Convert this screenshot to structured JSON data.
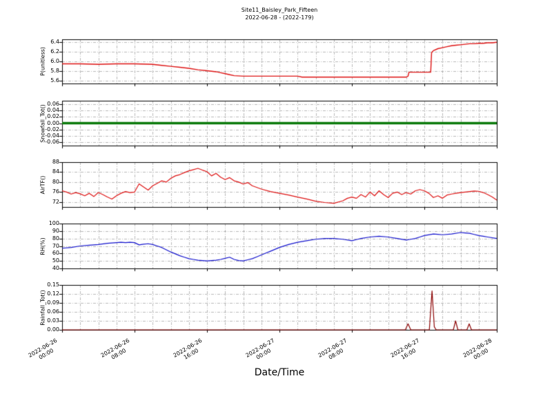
{
  "figure": {
    "title": "Site11_Baisley_Park_Fifteen",
    "subtitle": "2022-06-28 - (2022-179)",
    "xlabel": "Date/Time",
    "background": "#ffffff",
    "grid_color": "#999999",
    "frame_color": "#000000"
  },
  "x_axis": {
    "range_hours": [
      0,
      48
    ],
    "start_datetime": "2022-06-26 00:00",
    "tick_every_hours": 8,
    "grid_every_hours": 2,
    "tick_labels": [
      "2022-06-26\n00:00",
      "2022-06-26\n08:00",
      "2022-06-26\n16:00",
      "2022-06-27\n00:00",
      "2022-06-27\n08:00",
      "2022-06-27\n16:00",
      "2022-06-28\n00:00"
    ]
  },
  "chart_data": [
    {
      "type": "line",
      "ylabel": "P(unitless)",
      "color": "#dd1111",
      "linewidth": 1.4,
      "ylim": [
        5.55,
        6.45
      ],
      "ytick_values": [
        5.6,
        5.8,
        6.0,
        6.2,
        6.4
      ],
      "ytick_labels": [
        "5.6",
        "5.8",
        "6.0",
        "6.2",
        "6.4"
      ],
      "points": [
        [
          0,
          5.95
        ],
        [
          2,
          5.95
        ],
        [
          4,
          5.94
        ],
        [
          6,
          5.95
        ],
        [
          8,
          5.95
        ],
        [
          10,
          5.94
        ],
        [
          11,
          5.92
        ],
        [
          12,
          5.9
        ],
        [
          13,
          5.88
        ],
        [
          14,
          5.86
        ],
        [
          15,
          5.83
        ],
        [
          16,
          5.81
        ],
        [
          17,
          5.79
        ],
        [
          17.5,
          5.77
        ],
        [
          18,
          5.75
        ],
        [
          18.5,
          5.73
        ],
        [
          19,
          5.71
        ],
        [
          20,
          5.7
        ],
        [
          22,
          5.7
        ],
        [
          24,
          5.7
        ],
        [
          26,
          5.7
        ],
        [
          26.5,
          5.68
        ],
        [
          28,
          5.68
        ],
        [
          30,
          5.68
        ],
        [
          32,
          5.68
        ],
        [
          34,
          5.68
        ],
        [
          36,
          5.68
        ],
        [
          38,
          5.68
        ],
        [
          38.2,
          5.7
        ],
        [
          38.3,
          5.78
        ],
        [
          40,
          5.78
        ],
        [
          40.7,
          5.78
        ],
        [
          40.8,
          6.18
        ],
        [
          41,
          6.22
        ],
        [
          41.5,
          6.26
        ],
        [
          42,
          6.28
        ],
        [
          42.5,
          6.3
        ],
        [
          43,
          6.32
        ],
        [
          43.5,
          6.33
        ],
        [
          44,
          6.34
        ],
        [
          44.5,
          6.35
        ],
        [
          45,
          6.36
        ],
        [
          45.5,
          6.36
        ],
        [
          46,
          6.37
        ],
        [
          46.5,
          6.37
        ],
        [
          47,
          6.38
        ],
        [
          47.5,
          6.38
        ],
        [
          48,
          6.39
        ]
      ]
    },
    {
      "type": "line",
      "ylabel": "Snowfall_Tot()",
      "color": "#0a7a0a",
      "linewidth": 3.5,
      "ylim": [
        -0.07,
        0.07
      ],
      "ytick_values": [
        -0.06,
        -0.04,
        -0.02,
        0.0,
        0.02,
        0.04,
        0.06
      ],
      "ytick_labels": [
        "-0.06",
        "-0.04",
        "-0.02",
        "0.00",
        "0.02",
        "0.04",
        "0.06"
      ],
      "points": [
        [
          0,
          0
        ],
        [
          48,
          0
        ]
      ]
    },
    {
      "type": "line",
      "ylabel": "AirTF()",
      "color": "#dd1111",
      "linewidth": 1.2,
      "ylim": [
        70,
        88
      ],
      "ytick_values": [
        72,
        76,
        80,
        84,
        88
      ],
      "ytick_labels": [
        "72",
        "76",
        "80",
        "84",
        "88"
      ],
      "points": [
        [
          0,
          76.5
        ],
        [
          0.5,
          76
        ],
        [
          1,
          75.2
        ],
        [
          1.5,
          75.8
        ],
        [
          2,
          75.3
        ],
        [
          2.5,
          74.5
        ],
        [
          3,
          75.5
        ],
        [
          3.5,
          74.2
        ],
        [
          4,
          75.8
        ],
        [
          4.5,
          75
        ],
        [
          5,
          74
        ],
        [
          5.5,
          73.2
        ],
        [
          6,
          74.5
        ],
        [
          6.5,
          75.5
        ],
        [
          7,
          76.2
        ],
        [
          7.5,
          75.8
        ],
        [
          8,
          76
        ],
        [
          8.5,
          79.3
        ],
        [
          9,
          78
        ],
        [
          9.5,
          76.8
        ],
        [
          10,
          78.5
        ],
        [
          10.5,
          79.5
        ],
        [
          11,
          80.5
        ],
        [
          11.5,
          80
        ],
        [
          12,
          81.5
        ],
        [
          12.5,
          82.5
        ],
        [
          13,
          83
        ],
        [
          13.5,
          83.8
        ],
        [
          14,
          84.5
        ],
        [
          14.5,
          85
        ],
        [
          15,
          85.5
        ],
        [
          15.5,
          84.8
        ],
        [
          16,
          84.2
        ],
        [
          16.5,
          82.5
        ],
        [
          17,
          83.5
        ],
        [
          17.5,
          82
        ],
        [
          18,
          81
        ],
        [
          18.5,
          81.8
        ],
        [
          19,
          80.5
        ],
        [
          19.5,
          80
        ],
        [
          20,
          79.2
        ],
        [
          20.5,
          79.8
        ],
        [
          21,
          78.5
        ],
        [
          22,
          77.2
        ],
        [
          23,
          76.2
        ],
        [
          24,
          75.5
        ],
        [
          25,
          74.8
        ],
        [
          26,
          74
        ],
        [
          27,
          73.2
        ],
        [
          28,
          72.3
        ],
        [
          29,
          71.8
        ],
        [
          30,
          71.5
        ],
        [
          31,
          72.5
        ],
        [
          31.5,
          73.5
        ],
        [
          32,
          74
        ],
        [
          32.5,
          73.5
        ],
        [
          33,
          75
        ],
        [
          33.5,
          74
        ],
        [
          34,
          76
        ],
        [
          34.5,
          74.5
        ],
        [
          35,
          76.5
        ],
        [
          35.5,
          75
        ],
        [
          36,
          73.8
        ],
        [
          36.5,
          75.5
        ],
        [
          37,
          76
        ],
        [
          37.5,
          75
        ],
        [
          38,
          75.8
        ],
        [
          38.5,
          75.2
        ],
        [
          39,
          76.5
        ],
        [
          39.5,
          77
        ],
        [
          40,
          76.5
        ],
        [
          40.5,
          75.5
        ],
        [
          41,
          73.8
        ],
        [
          41.5,
          74.5
        ],
        [
          42,
          73.5
        ],
        [
          42.5,
          74.8
        ],
        [
          43,
          75.2
        ],
        [
          43.5,
          75.5
        ],
        [
          44,
          75.8
        ],
        [
          44.5,
          76
        ],
        [
          45,
          76.2
        ],
        [
          45.5,
          76.4
        ],
        [
          46,
          76.3
        ],
        [
          46.5,
          75.8
        ],
        [
          47,
          75
        ],
        [
          47.5,
          74
        ],
        [
          48,
          72.8
        ]
      ]
    },
    {
      "type": "line",
      "ylabel": "RH(%)",
      "color": "#1111cc",
      "linewidth": 1.2,
      "ylim": [
        40,
        100
      ],
      "ytick_values": [
        40,
        50,
        60,
        70,
        80,
        90,
        100
      ],
      "ytick_labels": [
        "40",
        "50",
        "60",
        "70",
        "80",
        "90",
        "100"
      ],
      "points": [
        [
          0,
          67
        ],
        [
          1,
          68
        ],
        [
          2,
          70
        ],
        [
          3,
          71
        ],
        [
          4,
          72
        ],
        [
          5,
          73.5
        ],
        [
          6,
          74.5
        ],
        [
          6.5,
          75
        ],
        [
          7,
          74.5
        ],
        [
          7.5,
          75
        ],
        [
          8,
          74.5
        ],
        [
          8.5,
          71.5
        ],
        [
          9,
          72.5
        ],
        [
          9.5,
          73
        ],
        [
          10,
          72
        ],
        [
          10.5,
          70
        ],
        [
          11,
          68
        ],
        [
          11.5,
          65
        ],
        [
          12,
          62
        ],
        [
          12.5,
          59.5
        ],
        [
          13,
          57
        ],
        [
          13.5,
          55
        ],
        [
          14,
          53
        ],
        [
          14.5,
          52
        ],
        [
          15,
          51
        ],
        [
          15.5,
          50.5
        ],
        [
          16,
          50
        ],
        [
          16.5,
          50.5
        ],
        [
          17,
          51
        ],
        [
          17.5,
          52
        ],
        [
          18,
          53.5
        ],
        [
          18.5,
          55
        ],
        [
          19,
          52
        ],
        [
          19.5,
          50.5
        ],
        [
          20,
          50
        ],
        [
          20.5,
          51.5
        ],
        [
          21,
          53
        ],
        [
          21.5,
          55.5
        ],
        [
          22,
          58
        ],
        [
          22.5,
          60.5
        ],
        [
          23,
          63
        ],
        [
          24,
          68
        ],
        [
          25,
          72
        ],
        [
          26,
          75
        ],
        [
          27,
          77
        ],
        [
          28,
          79
        ],
        [
          29,
          80
        ],
        [
          30,
          80
        ],
        [
          31,
          79
        ],
        [
          32,
          77
        ],
        [
          32.5,
          78.5
        ],
        [
          33,
          80
        ],
        [
          34,
          82
        ],
        [
          35,
          83
        ],
        [
          36,
          82
        ],
        [
          37,
          80
        ],
        [
          38,
          78
        ],
        [
          38.5,
          79
        ],
        [
          39,
          80
        ],
        [
          39.5,
          82
        ],
        [
          40,
          84
        ],
        [
          41,
          86
        ],
        [
          41.5,
          85.5
        ],
        [
          42,
          85
        ],
        [
          43,
          86
        ],
        [
          44,
          88
        ],
        [
          44.5,
          87.5
        ],
        [
          45,
          87
        ],
        [
          45.5,
          85.5
        ],
        [
          46,
          84
        ],
        [
          46.5,
          83
        ],
        [
          47,
          82
        ],
        [
          48,
          80
        ]
      ]
    },
    {
      "type": "line",
      "ylabel": "Rainfall_Tot()",
      "color": "#8b0000",
      "linewidth": 1.2,
      "ylim": [
        0,
        0.15
      ],
      "ytick_values": [
        0.0,
        0.03,
        0.06,
        0.09,
        0.12,
        0.15
      ],
      "ytick_labels": [
        "0.00",
        "0.03",
        "0.06",
        "0.09",
        "0.12",
        "0.15"
      ],
      "points": [
        [
          0,
          0
        ],
        [
          37.9,
          0
        ],
        [
          38.2,
          0.02
        ],
        [
          38.5,
          0
        ],
        [
          40.55,
          0
        ],
        [
          40.85,
          0.13
        ],
        [
          41.1,
          0.01
        ],
        [
          41.3,
          0
        ],
        [
          43.2,
          0
        ],
        [
          43.45,
          0.03
        ],
        [
          43.7,
          0
        ],
        [
          44.7,
          0
        ],
        [
          44.95,
          0.02
        ],
        [
          45.2,
          0
        ],
        [
          48,
          0
        ]
      ]
    }
  ]
}
